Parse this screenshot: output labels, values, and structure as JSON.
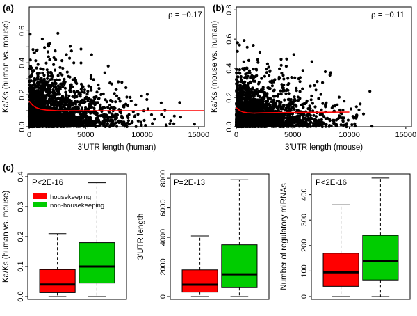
{
  "panels": {
    "a": "(a)",
    "b": "(b)",
    "c": "(c)"
  },
  "colors": {
    "points": "#000000",
    "trend": "#ff0000",
    "housekeeping": "#ff0000",
    "non_housekeeping": "#00cc00"
  },
  "chart_data": [
    {
      "id": "a",
      "type": "scatter",
      "xlabel": "3'UTR length (human)",
      "ylabel": "Ka/Ks (human vs. mouse)",
      "annotation": "ρ = −0.17",
      "xlim": [
        0,
        15500
      ],
      "ylim": [
        0,
        0.75
      ],
      "xticks": [
        0,
        5000,
        10000,
        15000
      ],
      "yticks": [
        0.0,
        0.1,
        0.2,
        0.3,
        0.4,
        0.5,
        0.6
      ],
      "ytick_labels": [
        "0.0",
        "",
        "0.2",
        "",
        "0.4",
        "",
        "0.6"
      ],
      "trend": {
        "x": [
          0,
          300,
          600,
          1000,
          1500,
          2500,
          4000,
          6000,
          10000,
          15500
        ],
        "y": [
          0.16,
          0.135,
          0.12,
          0.11,
          0.104,
          0.1,
          0.1,
          0.1,
          0.1,
          0.1
        ]
      }
    },
    {
      "id": "b",
      "type": "scatter",
      "xlabel": "3'UTR length (mouse)",
      "ylabel": "Ka/Ks (mouse vs. human)",
      "annotation": "ρ = −0.11",
      "xlim": [
        0,
        15500
      ],
      "ylim": [
        0,
        0.82
      ],
      "xticks": [
        0,
        5000,
        10000,
        15000
      ],
      "yticks": [
        0.0,
        0.2,
        0.4,
        0.6,
        0.8
      ],
      "ytick_labels": [
        "0.0",
        "0.2",
        "0.4",
        "0.6",
        "0.8"
      ],
      "trend": {
        "x": [
          0,
          300,
          600,
          1000,
          1500,
          2500,
          4000,
          6000,
          10000
        ],
        "y": [
          0.13,
          0.11,
          0.1,
          0.095,
          0.093,
          0.095,
          0.097,
          0.098,
          0.1
        ]
      }
    },
    {
      "id": "c1",
      "type": "box",
      "ylabel": "Ka/Ks (human vs. mouse)",
      "annotation": "P<2E-16",
      "ylim": [
        0,
        0.4
      ],
      "yticks": [
        0.0,
        0.1,
        0.2,
        0.3,
        0.4
      ],
      "ytick_labels": [
        "0.0",
        "0.1",
        "0.2",
        "0.3",
        "0.4"
      ],
      "legend": [
        "housekeeping",
        "non-housekeeping"
      ],
      "boxes": [
        {
          "name": "housekeeping",
          "min": 0.0,
          "q1": 0.013,
          "median": 0.04,
          "q3": 0.09,
          "max": 0.21
        },
        {
          "name": "non-housekeeping",
          "min": 0.0,
          "q1": 0.045,
          "median": 0.1,
          "q3": 0.18,
          "max": 0.38
        }
      ]
    },
    {
      "id": "c2",
      "type": "box",
      "ylabel": "3'UTR length",
      "annotation": "P=2E-13",
      "ylim": [
        0,
        8100
      ],
      "yticks": [
        0,
        2000,
        4000,
        6000,
        8000
      ],
      "ytick_labels": [
        "0",
        "2000",
        "4000",
        "6000",
        "8000"
      ],
      "boxes": [
        {
          "name": "housekeeping",
          "min": 0,
          "q1": 300,
          "median": 800,
          "q3": 1800,
          "max": 4100
        },
        {
          "name": "non-housekeeping",
          "min": 0,
          "q1": 600,
          "median": 1500,
          "q3": 3500,
          "max": 7900
        }
      ]
    },
    {
      "id": "c3",
      "type": "box",
      "ylabel": "Number of regulatory miRNAs",
      "annotation": "P<2E-16",
      "ylim": [
        0,
        470
      ],
      "yticks": [
        0,
        100,
        200,
        300,
        400
      ],
      "ytick_labels": [
        "0",
        "100",
        "200",
        "300",
        "400"
      ],
      "boxes": [
        {
          "name": "housekeeping",
          "min": 0,
          "q1": 40,
          "median": 95,
          "q3": 170,
          "max": 360
        },
        {
          "name": "non-housekeeping",
          "min": 0,
          "q1": 65,
          "median": 140,
          "q3": 240,
          "max": 465
        }
      ]
    }
  ]
}
